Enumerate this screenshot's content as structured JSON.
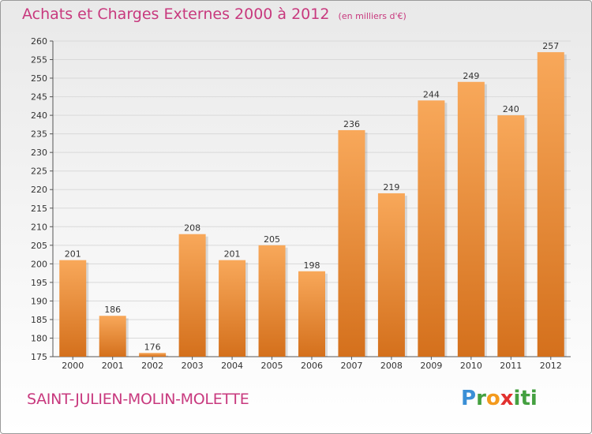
{
  "title": "Achats et Charges Externes 2000 à 2012",
  "subtitle": "(en milliers d'€)",
  "place": "SAINT-JULIEN-MOLIN-MOLETTE",
  "brand": "Proxiti",
  "colors": {
    "title": "#c8397e",
    "bar_light": "#f8a85a",
    "bar_dark": "#d4701c",
    "grid": "#d9d9d9"
  },
  "chart_data": {
    "type": "bar",
    "title": "Achats et Charges Externes 2000 à 2012",
    "subtitle": "(en milliers d'€)",
    "categories": [
      "2000",
      "2001",
      "2002",
      "2003",
      "2004",
      "2005",
      "2006",
      "2007",
      "2008",
      "2009",
      "2010",
      "2011",
      "2012"
    ],
    "values": [
      201,
      186,
      176,
      208,
      201,
      205,
      198,
      236,
      219,
      244,
      249,
      240,
      257
    ],
    "ylim": [
      175,
      260
    ],
    "yticks": [
      175,
      180,
      185,
      190,
      195,
      200,
      205,
      210,
      215,
      220,
      225,
      230,
      235,
      240,
      245,
      250,
      255,
      260
    ],
    "grid": true,
    "legend": "none"
  }
}
